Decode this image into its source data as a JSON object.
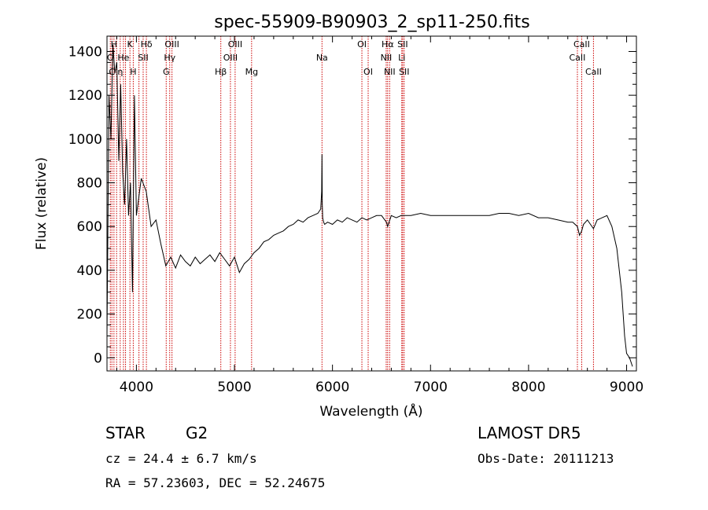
{
  "chart_data": {
    "type": "line",
    "title": "spec-55909-B90903_2_sp11-250.fits",
    "xlabel": "Wavelength (Å)",
    "ylabel": "Flux (relative)",
    "xlim": [
      3700,
      9100
    ],
    "ylim": [
      -60,
      1470
    ],
    "xticks": [
      4000,
      5000,
      6000,
      7000,
      8000,
      9000
    ],
    "yticks": [
      0,
      200,
      400,
      600,
      800,
      1000,
      1200,
      1400
    ],
    "grid": false,
    "line_color": "#000000",
    "marker_color": "#cc0000",
    "series": [
      {
        "x": [
          3700,
          3720,
          3740,
          3760,
          3780,
          3800,
          3820,
          3840,
          3860,
          3880,
          3900,
          3920,
          3940,
          3960,
          3980,
          4000,
          4050,
          4100,
          4150,
          4200,
          4250,
          4300,
          4350,
          4400,
          4450,
          4500,
          4550,
          4600,
          4650,
          4700,
          4750,
          4800,
          4850,
          4900,
          4950,
          5000,
          5050,
          5100,
          5150,
          5200,
          5250,
          5300,
          5350,
          5400,
          5450,
          5500,
          5550,
          5600,
          5650,
          5700,
          5750,
          5800,
          5850,
          5880,
          5890,
          5893,
          5896,
          5900,
          5910,
          5920,
          5950,
          6000,
          6050,
          6100,
          6150,
          6200,
          6250,
          6300,
          6350,
          6400,
          6450,
          6500,
          6550,
          6563,
          6600,
          6650,
          6700,
          6750,
          6800,
          6900,
          7000,
          7100,
          7200,
          7300,
          7400,
          7500,
          7600,
          7700,
          7800,
          7900,
          8000,
          8100,
          8200,
          8300,
          8400,
          8450,
          8498,
          8520,
          8542,
          8560,
          8600,
          8662,
          8700,
          8750,
          8800,
          8850,
          8900,
          8950,
          8980,
          9000,
          9030,
          9060
        ],
        "y": [
          100,
          1200,
          1000,
          1430,
          1300,
          1350,
          900,
          1250,
          850,
          700,
          1000,
          650,
          800,
          300,
          1200,
          650,
          820,
          760,
          600,
          630,
          520,
          420,
          460,
          410,
          470,
          440,
          420,
          460,
          430,
          450,
          470,
          440,
          480,
          450,
          420,
          460,
          390,
          430,
          450,
          480,
          500,
          530,
          540,
          560,
          570,
          580,
          600,
          610,
          630,
          620,
          640,
          650,
          660,
          680,
          760,
          930,
          700,
          640,
          620,
          610,
          620,
          610,
          630,
          620,
          640,
          630,
          620,
          640,
          630,
          640,
          650,
          650,
          620,
          600,
          650,
          640,
          650,
          650,
          650,
          660,
          650,
          650,
          650,
          650,
          650,
          650,
          650,
          660,
          660,
          650,
          660,
          640,
          640,
          630,
          620,
          620,
          600,
          560,
          580,
          610,
          630,
          590,
          630,
          640,
          650,
          600,
          500,
          300,
          100,
          20,
          0,
          -40
        ]
      }
    ],
    "line_markers": [
      {
        "x": 3734,
        "label": "O",
        "row": 1
      },
      {
        "x": 3750,
        "label": "C",
        "row": 2
      },
      {
        "x": 3771,
        "label": "H",
        "row": 0
      },
      {
        "x": 3798,
        "label": "",
        "row": 0
      },
      {
        "x": 3835,
        "label": "η",
        "row": 2
      },
      {
        "x": 3868,
        "label": "He",
        "row": 1
      },
      {
        "x": 3889,
        "label": "",
        "row": 1
      },
      {
        "x": 3934,
        "label": "K",
        "row": 0
      },
      {
        "x": 3968,
        "label": "H",
        "row": 2
      },
      {
        "x": 4026,
        "label": "",
        "row": 1
      },
      {
        "x": 4069,
        "label": "SII",
        "row": 1
      },
      {
        "x": 4102,
        "label": "Hδ",
        "row": 0
      },
      {
        "x": 4304,
        "label": "G",
        "row": 2
      },
      {
        "x": 4340,
        "label": "Hγ",
        "row": 1
      },
      {
        "x": 4363,
        "label": "OIII",
        "row": 0
      },
      {
        "x": 4861,
        "label": "Hβ",
        "row": 2
      },
      {
        "x": 4959,
        "label": "OIII",
        "row": 1
      },
      {
        "x": 5007,
        "label": "OIII",
        "row": 0
      },
      {
        "x": 5175,
        "label": "Mg",
        "row": 2
      },
      {
        "x": 5893,
        "label": "Na",
        "row": 1
      },
      {
        "x": 6300,
        "label": "OI",
        "row": 0
      },
      {
        "x": 6364,
        "label": "OI",
        "row": 2
      },
      {
        "x": 6548,
        "label": "NII",
        "row": 1
      },
      {
        "x": 6563,
        "label": "Hα",
        "row": 0
      },
      {
        "x": 6583,
        "label": "NII",
        "row": 2
      },
      {
        "x": 6707,
        "label": "Li",
        "row": 1
      },
      {
        "x": 6716,
        "label": "SII",
        "row": 0
      },
      {
        "x": 6731,
        "label": "SII",
        "row": 2
      },
      {
        "x": 8498,
        "label": "CaII",
        "row": 1
      },
      {
        "x": 8542,
        "label": "CaII",
        "row": 0
      },
      {
        "x": 8662,
        "label": "CaII",
        "row": 2
      }
    ]
  },
  "info": {
    "class": "STAR",
    "subclass": "G2",
    "redshift": "cz = 24.4 ± 6.7 km/s",
    "coords": "RA =  57.23603, DEC =  52.24675",
    "survey": "LAMOST DR5",
    "obs_date": "Obs-Date: 20111213"
  }
}
